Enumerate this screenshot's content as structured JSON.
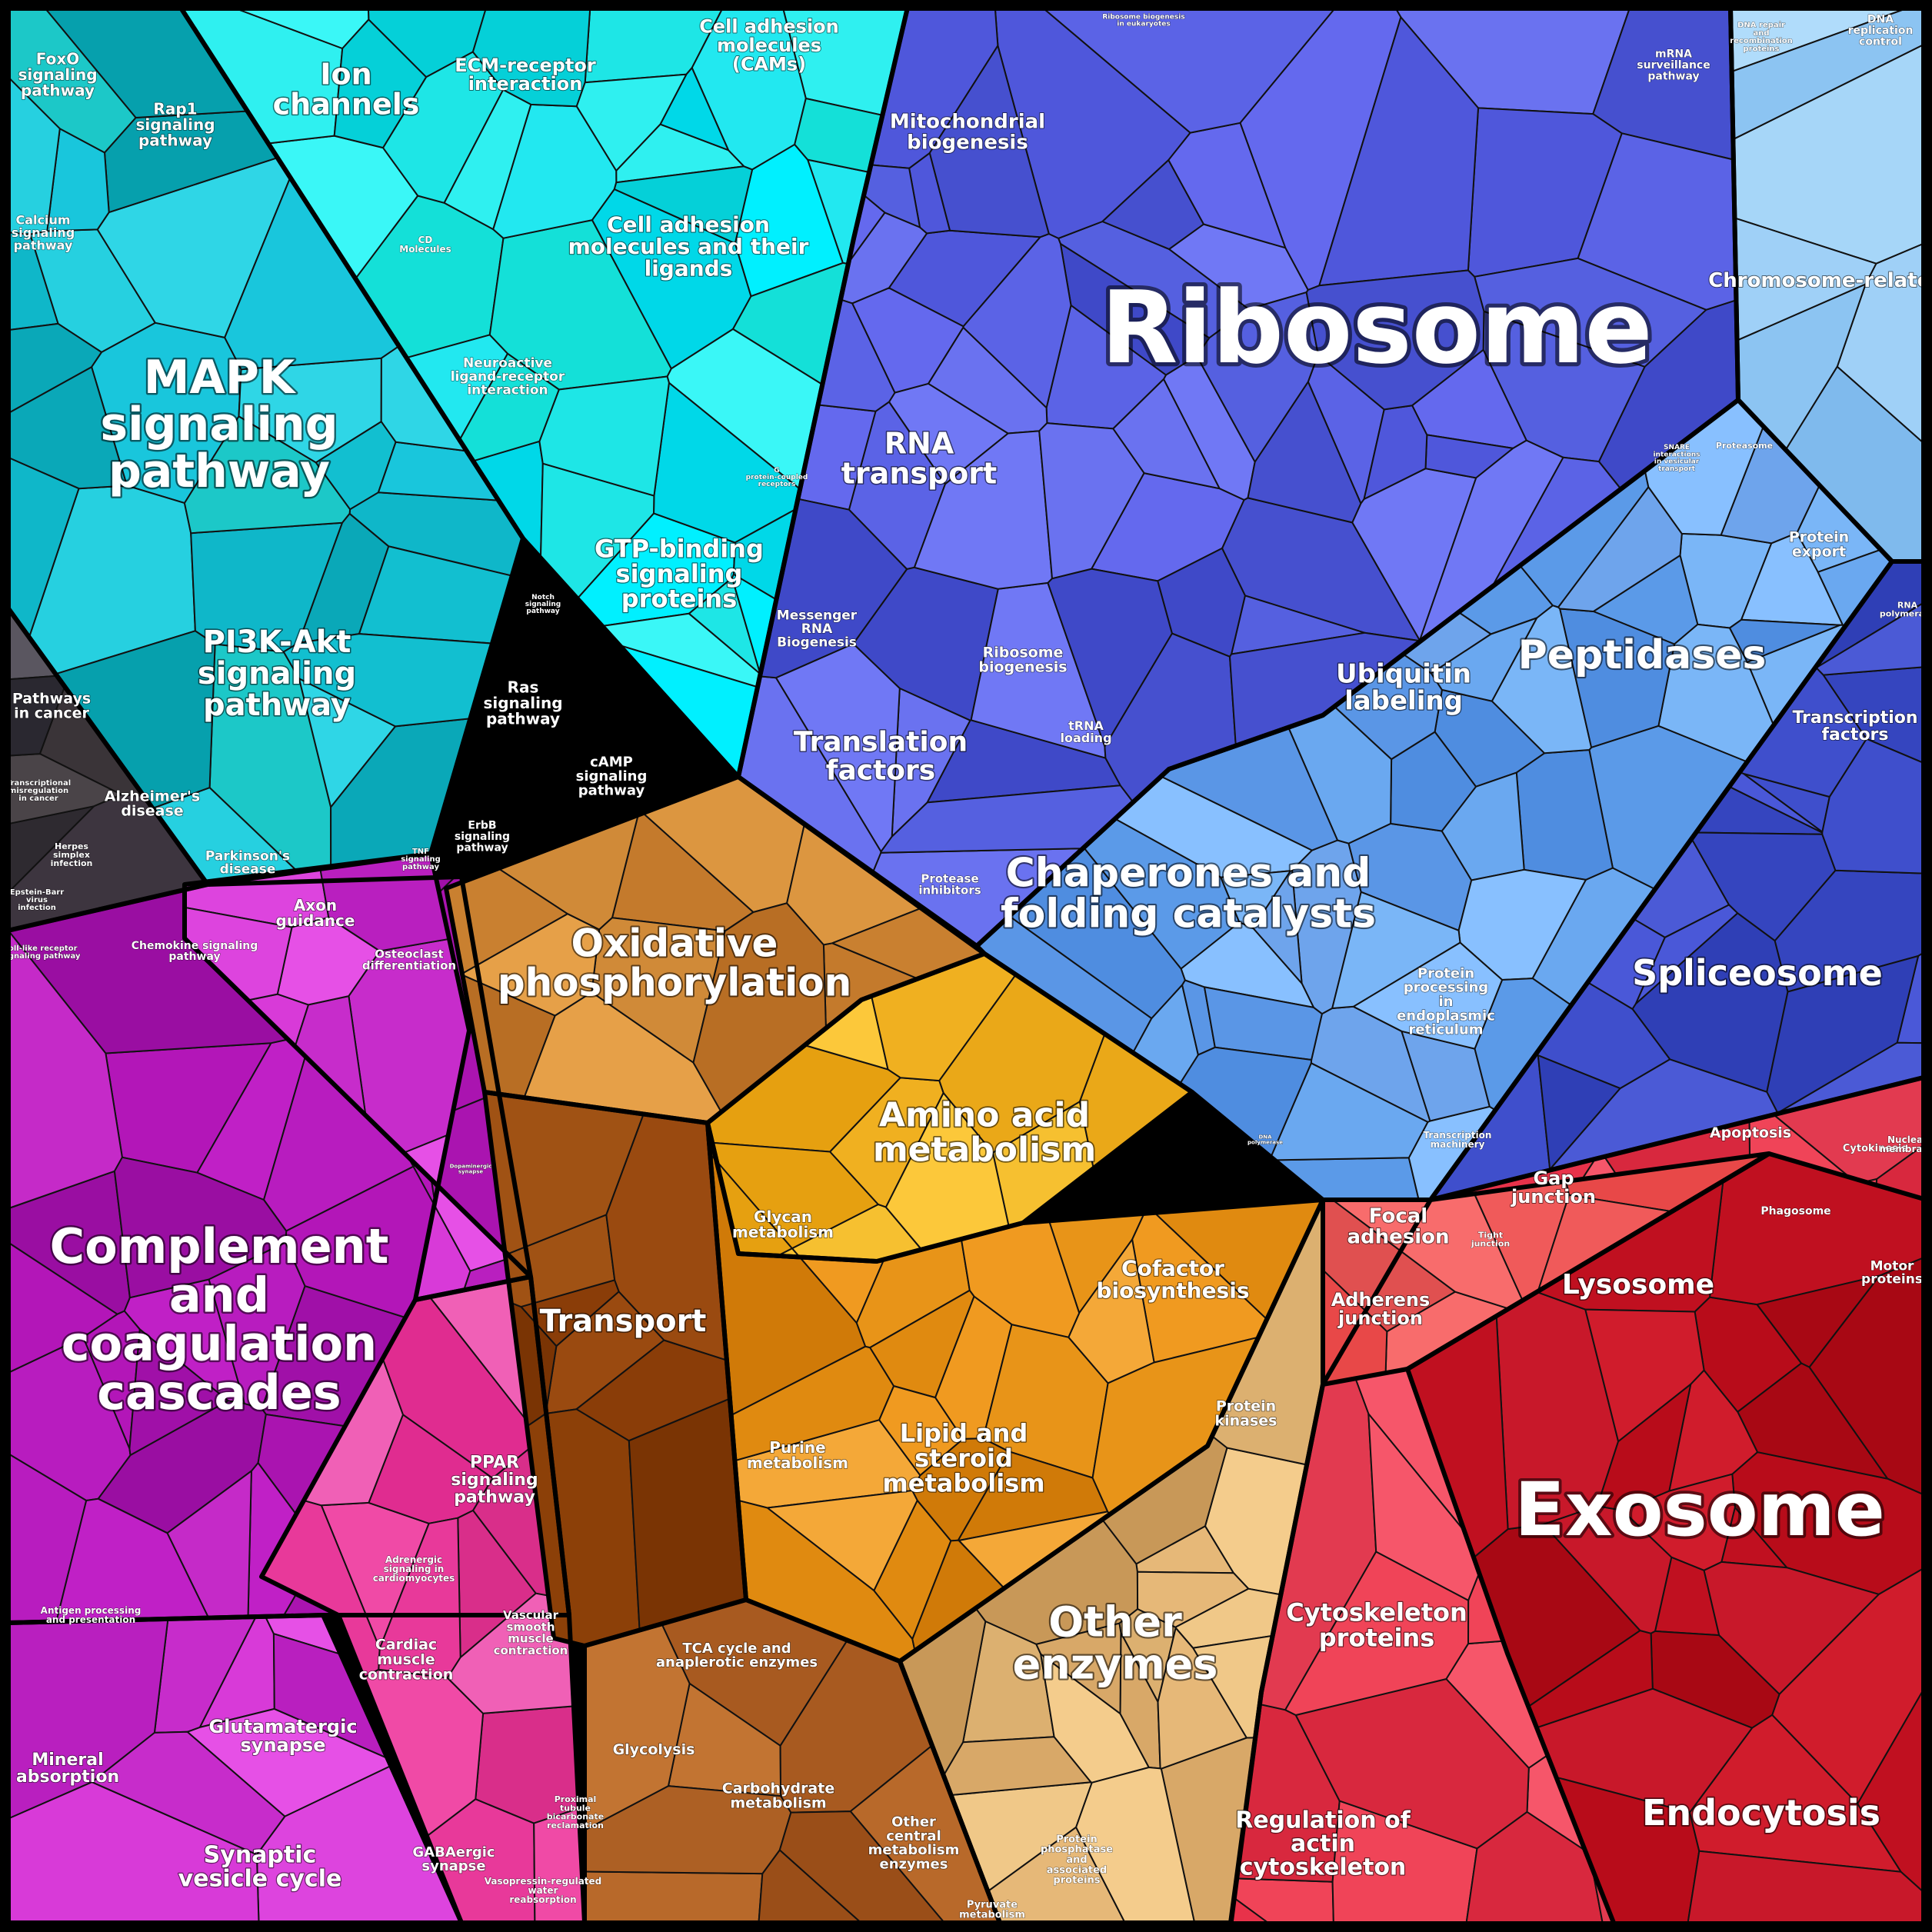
{
  "palette": {
    "teal": [
      "#19c6dc",
      "#0fb7c9",
      "#26d0e0",
      "#0aa8b8",
      "#2fd6e6",
      "#12bfd0",
      "#06a0ad",
      "#1cc8c8"
    ],
    "aqua": [
      "#1ee6e6",
      "#00d8e8",
      "#2ff0f0",
      "#14e0d8",
      "#00f0ff",
      "#22e8f0",
      "#05d0d8",
      "#3af7f7"
    ],
    "dark": [
      "#3a3438",
      "#2e2a30",
      "#4a4448",
      "#3d353f",
      "#5a5660",
      "#2a2830"
    ],
    "indigo": [
      "#5b63e6",
      "#4f57db",
      "#6a72f0",
      "#4650cf",
      "#7078f5",
      "#5560e0",
      "#3f49c8",
      "#6469ee"
    ],
    "blue": [
      "#6aa8f0",
      "#5b9ae8",
      "#7ab6f7",
      "#4f8de0",
      "#88c0ff",
      "#6ea4ec",
      "#5a96e6"
    ],
    "lightblue": [
      "#9fd0f7",
      "#8cc4f2",
      "#b0dcfb",
      "#7fbaed",
      "#a6d6f8"
    ],
    "royal": [
      "#3f4fcc",
      "#3545bf",
      "#4b5ad6",
      "#2f3fb6",
      "#4a58d8"
    ],
    "magenta": [
      "#b316b8",
      "#a010a8",
      "#c020c6",
      "#9a0ea2",
      "#b81cbf",
      "#aa14b0",
      "#c52ac8"
    ],
    "pink": [
      "#e8399a",
      "#f04aa6",
      "#d92e8a",
      "#f060b6",
      "#e02c90"
    ],
    "violet": [
      "#d83ad8",
      "#c72ccb",
      "#e650e6",
      "#b91fbf",
      "#dd44de"
    ],
    "copper": [
      "#c47a2c",
      "#d08a38",
      "#b86e24",
      "#dc9640",
      "#c98030",
      "#e6a048"
    ],
    "brown": [
      "#8a3d08",
      "#9a4a10",
      "#7a3404",
      "#a05214",
      "#8c4008"
    ],
    "gold": [
      "#f0b020",
      "#f6c030",
      "#e6a010",
      "#fcc83a",
      "#eaa818"
    ],
    "orange": [
      "#e08a10",
      "#f09a20",
      "#d07a08",
      "#f4a838",
      "#e89418"
    ],
    "tan": [
      "#d8a868",
      "#e6b878",
      "#c89858",
      "#f0c888",
      "#dcb070",
      "#f4cc8c"
    ],
    "sienna": [
      "#a85a20",
      "#b8692a",
      "#9a4e18",
      "#c27432",
      "#ad6024"
    ],
    "red": [
      "#e8324a",
      "#f04458",
      "#d8283e",
      "#f6566a",
      "#e23a50"
    ],
    "crimson": [
      "#c01020",
      "#a80814",
      "#d01c2c",
      "#b80c1a",
      "#c8182a"
    ],
    "salmon": [
      "#f05a5a",
      "#e84848",
      "#f86c6c",
      "#e05050"
    ]
  },
  "labels": [
    {
      "id": "ribosome",
      "text": "Ribosome",
      "size": 130
    },
    {
      "id": "exosome",
      "text": "Exosome",
      "size": 96
    },
    {
      "id": "mapk",
      "text": "MAPK signaling pathway",
      "size": 60
    },
    {
      "id": "complement",
      "text": "Complement and coagulation cascades",
      "size": 62
    },
    {
      "id": "pi3k",
      "text": "PI3K-Akt signaling pathway",
      "size": 40
    },
    {
      "id": "peptidases",
      "text": "Peptidases",
      "size": 52
    },
    {
      "id": "spliceosome",
      "text": "Spliceosome",
      "size": 46
    },
    {
      "id": "chaperones",
      "text": "Chaperones and folding catalysts",
      "size": 52
    },
    {
      "id": "oxphos",
      "text": "Oxidative phosphorylation",
      "size": 50
    },
    {
      "id": "aminoacid",
      "text": "Amino acid metabolism",
      "size": 44
    },
    {
      "id": "transport",
      "text": "Transport",
      "size": 40
    },
    {
      "id": "otherenz",
      "text": "Other enzymes",
      "size": 54
    },
    {
      "id": "endocytosis",
      "text": "Endocytosis",
      "size": 46
    },
    {
      "id": "lysosome",
      "text": "Lysosome",
      "size": 36
    },
    {
      "id": "rnatransport",
      "text": "RNA transport",
      "size": 38
    },
    {
      "id": "translation",
      "text": "Translation factors",
      "size": 36
    },
    {
      "id": "ubiquitin",
      "text": "Ubiquitin labeling",
      "size": 34
    },
    {
      "id": "ionchannels",
      "text": "Ion channels",
      "size": 38
    },
    {
      "id": "celladh",
      "text": "Cell adhesion molecules and their ligands",
      "size": 28
    },
    {
      "id": "gtp",
      "text": "GTP-binding signaling proteins",
      "size": 32
    },
    {
      "id": "lipid",
      "text": "Lipid and steroid metabolism",
      "size": 32
    },
    {
      "id": "cofactor",
      "text": "Cofactor biosynthesis",
      "size": 28
    },
    {
      "id": "cytoskel",
      "text": "Cytoskeleton proteins",
      "size": 32
    },
    {
      "id": "regactin",
      "text": "Regulation of actin cytoskeleton",
      "size": 30
    },
    {
      "id": "mito",
      "text": "Mitochondrial biogenesis",
      "size": 26
    },
    {
      "id": "chromosome",
      "text": "Chromosome-related",
      "size": 26
    },
    {
      "id": "synvesicle",
      "text": "Synaptic vesicle cycle",
      "size": 30
    },
    {
      "id": "glutamatergic",
      "text": "Glutamatergic synapse",
      "size": 24
    },
    {
      "id": "focal",
      "text": "Focal adhesion",
      "size": 26
    },
    {
      "id": "adherens",
      "text": "Adherens junction",
      "size": 24
    },
    {
      "id": "gap",
      "text": "Gap junction",
      "size": 24
    },
    {
      "id": "transfactors",
      "text": "Transcription factors",
      "size": 22
    },
    {
      "id": "ecm",
      "text": "ECM-receptor interaction",
      "size": 24
    },
    {
      "id": "cam",
      "text": "Cell adhesion molecules (CAMs)",
      "size": 24
    },
    {
      "id": "ras",
      "text": "Ras signaling pathway",
      "size": 20
    },
    {
      "id": "camp",
      "text": "cAMP signaling pathway",
      "size": 18
    },
    {
      "id": "foxo",
      "text": "FoxO signaling pathway",
      "size": 20
    },
    {
      "id": "rap1",
      "text": "Rap1 signaling pathway",
      "size": 20
    },
    {
      "id": "calcium",
      "text": "Calcium signaling pathway",
      "size": 16
    },
    {
      "id": "pathcancer",
      "text": "Pathways in cancer",
      "size": 19
    },
    {
      "id": "alzheimer",
      "text": "Alzheimer's disease",
      "size": 19
    },
    {
      "id": "parkinson",
      "text": "Parkinson's disease",
      "size": 17
    },
    {
      "id": "axon",
      "text": "Axon guidance",
      "size": 20
    },
    {
      "id": "osteoclast",
      "text": "Osteoclast differentiation",
      "size": 15
    },
    {
      "id": "ppar",
      "text": "PPAR signaling pathway",
      "size": 22
    },
    {
      "id": "cardiac",
      "text": "Cardiac muscle contraction",
      "size": 19
    },
    {
      "id": "vascular",
      "text": "Vascular smooth muscle contraction",
      "size": 15
    },
    {
      "id": "mineral",
      "text": "Mineral absorption",
      "size": 22
    },
    {
      "id": "gabaergic",
      "text": "GABAergic synapse",
      "size": 18
    },
    {
      "id": "glycan",
      "text": "Glycan metabolism",
      "size": 20
    },
    {
      "id": "purine",
      "text": "Purine metabolism",
      "size": 20
    },
    {
      "id": "tca",
      "text": "TCA cycle and anaplerotic enzymes",
      "size": 18
    },
    {
      "id": "glycolysis",
      "text": "Glycolysis",
      "size": 19
    },
    {
      "id": "carbo",
      "text": "Carbohydrate metabolism",
      "size": 19
    },
    {
      "id": "othercentral",
      "text": "Other central metabolism enzymes",
      "size": 18
    },
    {
      "id": "proteinkinases",
      "text": "Protein kinases",
      "size": 19
    },
    {
      "id": "ribobiogen",
      "text": "Ribosome biogenesis",
      "size": 19
    },
    {
      "id": "messenger",
      "text": "Messenger RNA Biogenesis",
      "size": 17
    },
    {
      "id": "proteinexport",
      "text": "Protein export",
      "size": 19
    },
    {
      "id": "protprocessing",
      "text": "Protein processing in endoplasmic reticulum",
      "size": 18
    },
    {
      "id": "apoptosis",
      "text": "Apoptosis",
      "size": 19
    },
    {
      "id": "motor",
      "text": "Motor proteins",
      "size": 17
    },
    {
      "id": "neuroactive",
      "text": "Neuroactive ligand-receptor interaction",
      "size": 17
    },
    {
      "id": "mrnasurv",
      "text": "mRNA surveillance pathway",
      "size": 14
    },
    {
      "id": "dnarep",
      "text": "DNA replication control",
      "size": 14
    },
    {
      "id": "protphos",
      "text": "Protein phosphatase and associated proteins",
      "size": 13
    },
    {
      "id": "pyruvate",
      "text": "Pyruvate metabolism",
      "size": 13
    },
    {
      "id": "trna",
      "text": "tRNA loading",
      "size": 16
    },
    {
      "id": "proteaseinh",
      "text": "Protease inhibitors",
      "size": 15
    },
    {
      "id": "erbb",
      "text": "ErbB signaling pathway",
      "size": 14
    },
    {
      "id": "chemokine",
      "text": "Chemokine signaling pathway",
      "size": 14
    },
    {
      "id": "antigen",
      "text": "Antigen processing and presentation",
      "size": 12
    },
    {
      "id": "adrenergic",
      "text": "Adrenergic signaling in cardiomyocytes",
      "size": 12
    },
    {
      "id": "proximal",
      "text": "Proximal tubule bicarbonate reclamation",
      "size": 11
    },
    {
      "id": "vasopressin",
      "text": "Vasopressin-regulated water reabsorption",
      "size": 12
    },
    {
      "id": "tight",
      "text": "Tight junction",
      "size": 11
    },
    {
      "id": "phagosome",
      "text": "Phagosome",
      "size": 14
    },
    {
      "id": "cytokinesis",
      "text": "Cytokinesis",
      "size": 13
    },
    {
      "id": "nuclearmem",
      "text": "Nuclear membrane",
      "size": 12
    },
    {
      "id": "transcmach",
      "text": "Transcription machinery",
      "size": 12
    },
    {
      "id": "cdmolecules",
      "text": "CD Molecules",
      "size": 12
    },
    {
      "id": "tnf",
      "text": "TNF signaling pathway",
      "size": 10
    },
    {
      "id": "herpes",
      "text": "Herpes simplex infection",
      "size": 11
    },
    {
      "id": "epstein",
      "text": "Epstein-Barr virus infection",
      "size": 10
    },
    {
      "id": "transmis",
      "text": "Transcriptional misregulation in cancer",
      "size": 10
    },
    {
      "id": "tollike",
      "text": "Toll-like receptor signaling pathway",
      "size": 10
    },
    {
      "id": "notch",
      "text": "Notch signaling pathway",
      "size": 9
    },
    {
      "id": "gprotein",
      "text": "G protein-coupled receptors",
      "size": 9
    },
    {
      "id": "rnapoly",
      "text": "RNA polymerase",
      "size": 11
    },
    {
      "id": "proteasome",
      "text": "Proteasome",
      "size": 11
    },
    {
      "id": "snare",
      "text": "SNARE interactions in vesicular transport",
      "size": 9
    },
    {
      "id": "dnarepair",
      "text": "DNA repair and recombination proteins",
      "size": 10
    },
    {
      "id": "ribobioeuk",
      "text": "Ribosome biogenesis in eukaryotes",
      "size": 9
    },
    {
      "id": "dnapoly",
      "text": "DNA polymerase",
      "size": 7
    },
    {
      "id": "dopaminergic",
      "text": "Dopaminergic synapse",
      "size": 7
    }
  ]
}
